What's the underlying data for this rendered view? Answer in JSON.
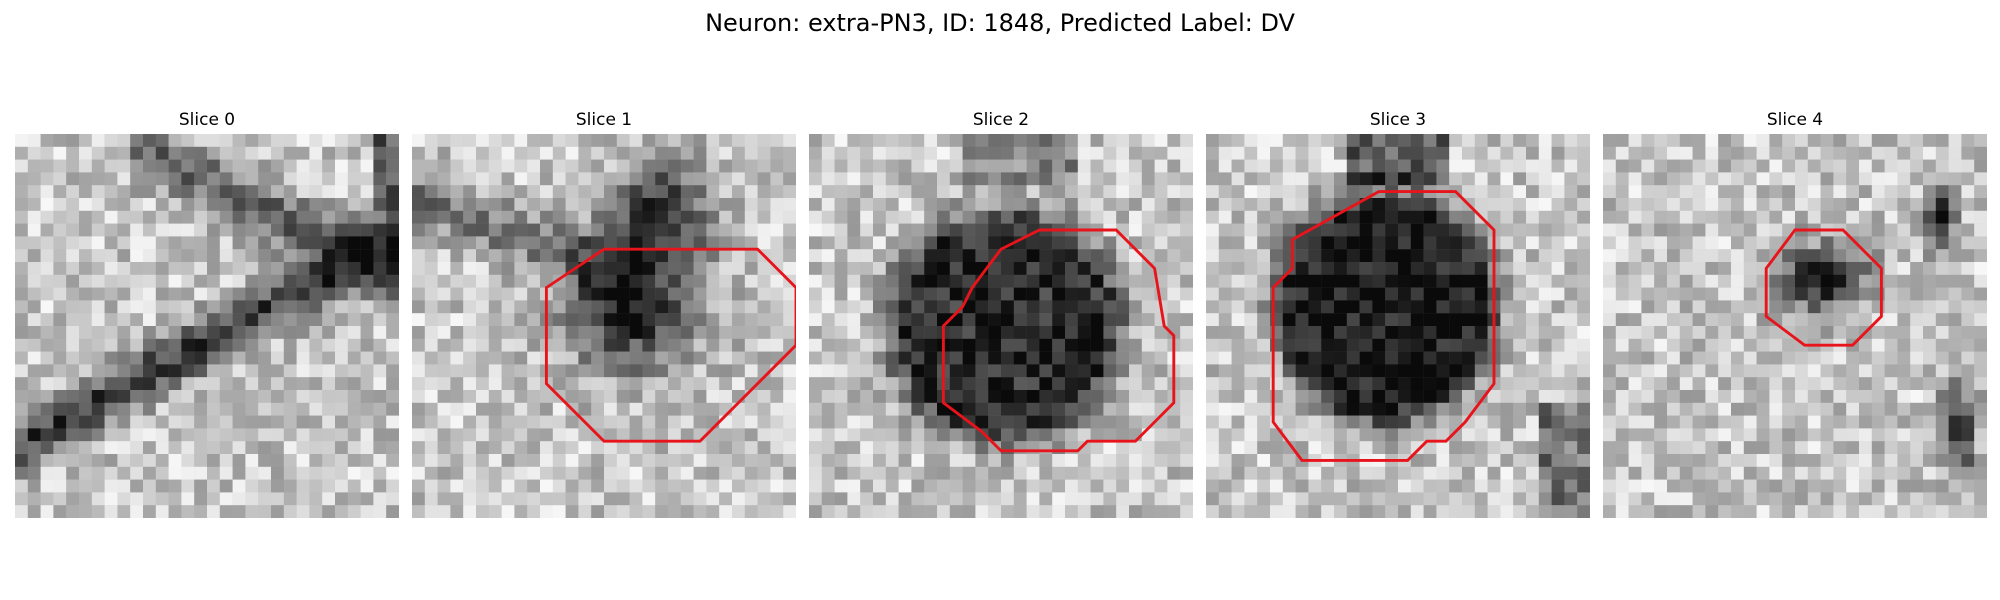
{
  "figure": {
    "title": "Neuron: extra-PN3, ID: 1848, Predicted Label: DV"
  },
  "slices": [
    {
      "title": "Slice 0",
      "image": "noisy grayscale electron-microscopy patch with a dark diagonal membrane band",
      "contour": null
    },
    {
      "title": "Slice 1",
      "image": "grayscale patch with dark blob at upper center",
      "contour": {
        "color": "#e8141b",
        "points": [
          [
            14,
            6
          ],
          [
            18,
            6
          ],
          [
            20,
            8
          ],
          [
            20,
            11
          ],
          [
            15,
            16
          ],
          [
            10,
            16
          ],
          [
            7,
            13
          ],
          [
            7,
            8
          ],
          [
            10,
            6
          ]
        ]
      }
    },
    {
      "title": "Slice 2",
      "image": "grayscale patch with large dark round cell body",
      "contour": {
        "color": "#e8141b",
        "points": [
          [
            12,
            5
          ],
          [
            16,
            5
          ],
          [
            18,
            7
          ],
          [
            18.5,
            10
          ],
          [
            19,
            10.5
          ],
          [
            19,
            14
          ],
          [
            17,
            16
          ],
          [
            14.5,
            16
          ],
          [
            14,
            16.5
          ],
          [
            10,
            16.5
          ],
          [
            9,
            15.5
          ],
          [
            7,
            14
          ],
          [
            7,
            10
          ],
          [
            8,
            9
          ],
          [
            8.5,
            8
          ],
          [
            10,
            6
          ]
        ]
      }
    },
    {
      "title": "Slice 3",
      "image": "grayscale patch with very dark round cell body",
      "contour": {
        "color": "#e8141b",
        "points": [
          [
            9,
            3
          ],
          [
            13,
            3
          ],
          [
            15,
            5
          ],
          [
            15,
            13
          ],
          [
            13.5,
            15
          ],
          [
            12.5,
            16
          ],
          [
            11.5,
            16
          ],
          [
            10.5,
            17
          ],
          [
            5,
            17
          ],
          [
            3.5,
            15
          ],
          [
            3.5,
            8
          ],
          [
            4.5,
            7
          ],
          [
            4.5,
            5.5
          ]
        ]
      }
    },
    {
      "title": "Slice 4",
      "image": "grayscale patch with small dark cell body",
      "contour": {
        "color": "#e8141b",
        "points": [
          [
            10,
            5
          ],
          [
            12.5,
            5
          ],
          [
            14.5,
            7
          ],
          [
            14.5,
            9.5
          ],
          [
            13,
            11
          ],
          [
            10.5,
            11
          ],
          [
            8.5,
            9.5
          ],
          [
            8.5,
            7
          ]
        ]
      }
    }
  ]
}
